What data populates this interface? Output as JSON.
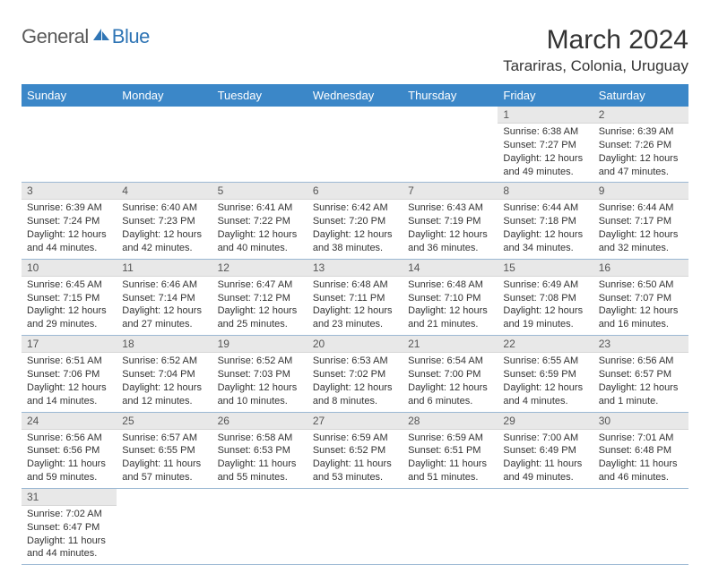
{
  "brand": {
    "general": "General",
    "blue": "Blue"
  },
  "title": "March 2024",
  "location": "Tarariras, Colonia, Uruguay",
  "colors": {
    "header_bg": "#3b87c8",
    "header_text": "#ffffff",
    "daynum_bg": "#e8e8e8",
    "rule": "#9bb8d3",
    "brand_gray": "#5a5a5a",
    "brand_blue": "#2f75b5"
  },
  "weekdays": [
    "Sunday",
    "Monday",
    "Tuesday",
    "Wednesday",
    "Thursday",
    "Friday",
    "Saturday"
  ],
  "weeks": [
    [
      {
        "n": "",
        "sr": "",
        "ss": "",
        "dl": ""
      },
      {
        "n": "",
        "sr": "",
        "ss": "",
        "dl": ""
      },
      {
        "n": "",
        "sr": "",
        "ss": "",
        "dl": ""
      },
      {
        "n": "",
        "sr": "",
        "ss": "",
        "dl": ""
      },
      {
        "n": "",
        "sr": "",
        "ss": "",
        "dl": ""
      },
      {
        "n": "1",
        "sr": "Sunrise: 6:38 AM",
        "ss": "Sunset: 7:27 PM",
        "dl": "Daylight: 12 hours and 49 minutes."
      },
      {
        "n": "2",
        "sr": "Sunrise: 6:39 AM",
        "ss": "Sunset: 7:26 PM",
        "dl": "Daylight: 12 hours and 47 minutes."
      }
    ],
    [
      {
        "n": "3",
        "sr": "Sunrise: 6:39 AM",
        "ss": "Sunset: 7:24 PM",
        "dl": "Daylight: 12 hours and 44 minutes."
      },
      {
        "n": "4",
        "sr": "Sunrise: 6:40 AM",
        "ss": "Sunset: 7:23 PM",
        "dl": "Daylight: 12 hours and 42 minutes."
      },
      {
        "n": "5",
        "sr": "Sunrise: 6:41 AM",
        "ss": "Sunset: 7:22 PM",
        "dl": "Daylight: 12 hours and 40 minutes."
      },
      {
        "n": "6",
        "sr": "Sunrise: 6:42 AM",
        "ss": "Sunset: 7:20 PM",
        "dl": "Daylight: 12 hours and 38 minutes."
      },
      {
        "n": "7",
        "sr": "Sunrise: 6:43 AM",
        "ss": "Sunset: 7:19 PM",
        "dl": "Daylight: 12 hours and 36 minutes."
      },
      {
        "n": "8",
        "sr": "Sunrise: 6:44 AM",
        "ss": "Sunset: 7:18 PM",
        "dl": "Daylight: 12 hours and 34 minutes."
      },
      {
        "n": "9",
        "sr": "Sunrise: 6:44 AM",
        "ss": "Sunset: 7:17 PM",
        "dl": "Daylight: 12 hours and 32 minutes."
      }
    ],
    [
      {
        "n": "10",
        "sr": "Sunrise: 6:45 AM",
        "ss": "Sunset: 7:15 PM",
        "dl": "Daylight: 12 hours and 29 minutes."
      },
      {
        "n": "11",
        "sr": "Sunrise: 6:46 AM",
        "ss": "Sunset: 7:14 PM",
        "dl": "Daylight: 12 hours and 27 minutes."
      },
      {
        "n": "12",
        "sr": "Sunrise: 6:47 AM",
        "ss": "Sunset: 7:12 PM",
        "dl": "Daylight: 12 hours and 25 minutes."
      },
      {
        "n": "13",
        "sr": "Sunrise: 6:48 AM",
        "ss": "Sunset: 7:11 PM",
        "dl": "Daylight: 12 hours and 23 minutes."
      },
      {
        "n": "14",
        "sr": "Sunrise: 6:48 AM",
        "ss": "Sunset: 7:10 PM",
        "dl": "Daylight: 12 hours and 21 minutes."
      },
      {
        "n": "15",
        "sr": "Sunrise: 6:49 AM",
        "ss": "Sunset: 7:08 PM",
        "dl": "Daylight: 12 hours and 19 minutes."
      },
      {
        "n": "16",
        "sr": "Sunrise: 6:50 AM",
        "ss": "Sunset: 7:07 PM",
        "dl": "Daylight: 12 hours and 16 minutes."
      }
    ],
    [
      {
        "n": "17",
        "sr": "Sunrise: 6:51 AM",
        "ss": "Sunset: 7:06 PM",
        "dl": "Daylight: 12 hours and 14 minutes."
      },
      {
        "n": "18",
        "sr": "Sunrise: 6:52 AM",
        "ss": "Sunset: 7:04 PM",
        "dl": "Daylight: 12 hours and 12 minutes."
      },
      {
        "n": "19",
        "sr": "Sunrise: 6:52 AM",
        "ss": "Sunset: 7:03 PM",
        "dl": "Daylight: 12 hours and 10 minutes."
      },
      {
        "n": "20",
        "sr": "Sunrise: 6:53 AM",
        "ss": "Sunset: 7:02 PM",
        "dl": "Daylight: 12 hours and 8 minutes."
      },
      {
        "n": "21",
        "sr": "Sunrise: 6:54 AM",
        "ss": "Sunset: 7:00 PM",
        "dl": "Daylight: 12 hours and 6 minutes."
      },
      {
        "n": "22",
        "sr": "Sunrise: 6:55 AM",
        "ss": "Sunset: 6:59 PM",
        "dl": "Daylight: 12 hours and 4 minutes."
      },
      {
        "n": "23",
        "sr": "Sunrise: 6:56 AM",
        "ss": "Sunset: 6:57 PM",
        "dl": "Daylight: 12 hours and 1 minute."
      }
    ],
    [
      {
        "n": "24",
        "sr": "Sunrise: 6:56 AM",
        "ss": "Sunset: 6:56 PM",
        "dl": "Daylight: 11 hours and 59 minutes."
      },
      {
        "n": "25",
        "sr": "Sunrise: 6:57 AM",
        "ss": "Sunset: 6:55 PM",
        "dl": "Daylight: 11 hours and 57 minutes."
      },
      {
        "n": "26",
        "sr": "Sunrise: 6:58 AM",
        "ss": "Sunset: 6:53 PM",
        "dl": "Daylight: 11 hours and 55 minutes."
      },
      {
        "n": "27",
        "sr": "Sunrise: 6:59 AM",
        "ss": "Sunset: 6:52 PM",
        "dl": "Daylight: 11 hours and 53 minutes."
      },
      {
        "n": "28",
        "sr": "Sunrise: 6:59 AM",
        "ss": "Sunset: 6:51 PM",
        "dl": "Daylight: 11 hours and 51 minutes."
      },
      {
        "n": "29",
        "sr": "Sunrise: 7:00 AM",
        "ss": "Sunset: 6:49 PM",
        "dl": "Daylight: 11 hours and 49 minutes."
      },
      {
        "n": "30",
        "sr": "Sunrise: 7:01 AM",
        "ss": "Sunset: 6:48 PM",
        "dl": "Daylight: 11 hours and 46 minutes."
      }
    ],
    [
      {
        "n": "31",
        "sr": "Sunrise: 7:02 AM",
        "ss": "Sunset: 6:47 PM",
        "dl": "Daylight: 11 hours and 44 minutes."
      },
      {
        "n": "",
        "sr": "",
        "ss": "",
        "dl": ""
      },
      {
        "n": "",
        "sr": "",
        "ss": "",
        "dl": ""
      },
      {
        "n": "",
        "sr": "",
        "ss": "",
        "dl": ""
      },
      {
        "n": "",
        "sr": "",
        "ss": "",
        "dl": ""
      },
      {
        "n": "",
        "sr": "",
        "ss": "",
        "dl": ""
      },
      {
        "n": "",
        "sr": "",
        "ss": "",
        "dl": ""
      }
    ]
  ]
}
